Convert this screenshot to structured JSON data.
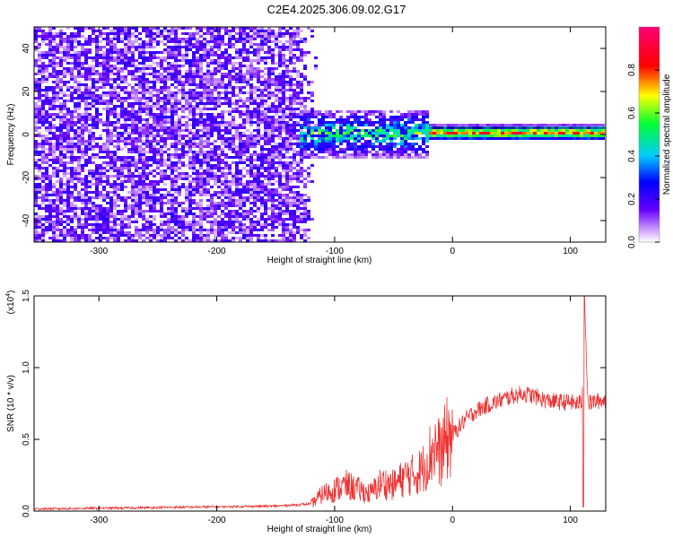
{
  "title": "C2E4.2025.306.09.02.G17",
  "colors": {
    "snr_line": "#ee3333",
    "axis": "#000000"
  },
  "colorbar": {
    "label": "Normalized spectral amplitude",
    "ticks": [
      0.0,
      0.2,
      0.4,
      0.6,
      0.8
    ],
    "tick_labels": [
      "0.0",
      "0.2",
      "0.4",
      "0.6",
      "0.8"
    ],
    "range": [
      0,
      1
    ],
    "colormap": "rainbow (white-purple-blue-cyan-green-yellow-red-magenta)"
  },
  "chart_data": [
    {
      "type": "heatmap",
      "xlabel": "Height of straight line (km)",
      "ylabel": "Frequency (Hz)",
      "xlim": [
        -355,
        130
      ],
      "ylim": [
        -50,
        50
      ],
      "x_ticks": [
        -300,
        -200,
        -100,
        0,
        100
      ],
      "x_tick_labels": [
        "-300",
        "-200",
        "-100",
        "0",
        "100"
      ],
      "y_ticks": [
        -40,
        -20,
        0,
        20,
        40
      ],
      "y_tick_labels": [
        "-40",
        "-20",
        "0",
        "20",
        "40"
      ],
      "description_regions": [
        {
          "x_range": [
            -355,
            -115
          ],
          "freq_range": [
            -50,
            50
          ],
          "amplitude": 0.15,
          "pattern": "broadband noise"
        },
        {
          "x_range": [
            -130,
            -20
          ],
          "freq_range": [
            -8,
            8
          ],
          "amplitude": 0.45,
          "pattern": "strong near-zero signal with spread"
        },
        {
          "x_range": [
            -20,
            130
          ],
          "freq_range": [
            -2,
            3
          ],
          "amplitude": 0.9,
          "pattern": "narrow strong carrier line near 0-1 Hz"
        }
      ]
    },
    {
      "type": "line",
      "xlabel": "Height of straight line (km)",
      "ylabel": "SNR (10 * v/v)",
      "y_scale_label": "(x10^4)",
      "xlim": [
        -355,
        130
      ],
      "ylim": [
        0,
        1.5
      ],
      "x_ticks": [
        -300,
        -200,
        -100,
        0,
        100
      ],
      "x_tick_labels": [
        "-300",
        "-200",
        "-100",
        "0",
        "100"
      ],
      "y_ticks": [
        0.0,
        0.5,
        1.0,
        1.5
      ],
      "y_tick_labels": [
        "0.0",
        "0.5",
        "1.0",
        "1.5"
      ],
      "series": [
        {
          "x": [
            -355,
            -300,
            -250,
            -200,
            -150,
            -120,
            -110,
            -100,
            -90,
            -80,
            -70,
            -60,
            -50,
            -40,
            -30,
            -25,
            -20,
            -15,
            -10,
            -5,
            0,
            10,
            20,
            30,
            40,
            50,
            60,
            70,
            80,
            90,
            100,
            105,
            110,
            112,
            115,
            120,
            125,
            130
          ],
          "y": [
            0.015,
            0.02,
            0.025,
            0.03,
            0.035,
            0.05,
            0.12,
            0.15,
            0.18,
            0.15,
            0.12,
            0.2,
            0.18,
            0.24,
            0.26,
            0.3,
            0.38,
            0.45,
            0.4,
            0.5,
            0.53,
            0.63,
            0.7,
            0.74,
            0.77,
            0.8,
            0.82,
            0.8,
            0.77,
            0.76,
            0.76,
            0.75,
            0.76,
            1.5,
            0.75,
            0.76,
            0.77,
            0.77
          ]
        }
      ]
    }
  ]
}
